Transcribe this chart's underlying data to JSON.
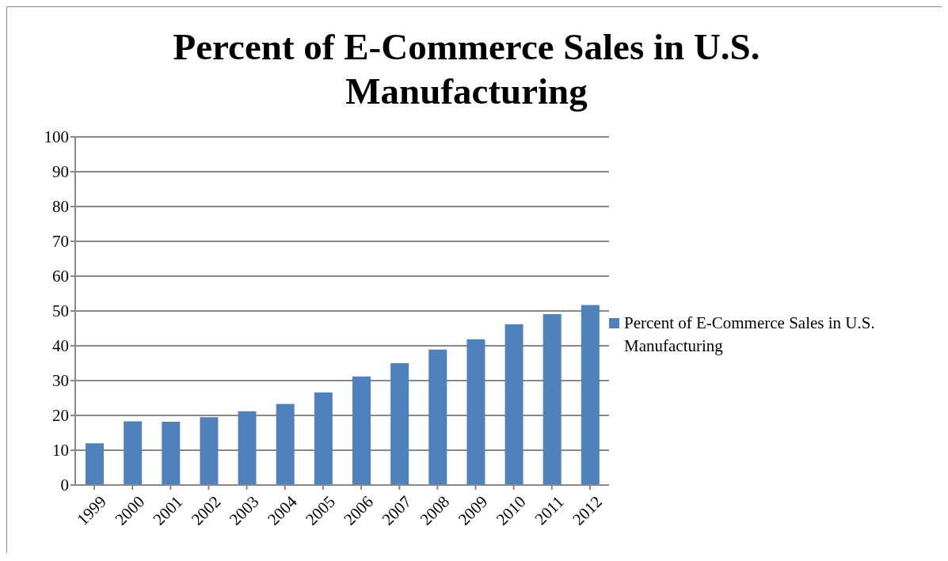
{
  "chart_data": {
    "type": "bar",
    "title": "Percent of E-Commerce Sales in U.S. Manufacturing",
    "categories": [
      "1999",
      "2000",
      "2001",
      "2002",
      "2003",
      "2004",
      "2005",
      "2006",
      "2007",
      "2008",
      "2009",
      "2010",
      "2011",
      "2012"
    ],
    "series": [
      {
        "name": "Percent of E-Commerce Sales in U.S. Manufacturing",
        "color": "#4f81bd",
        "values": [
          12,
          18.3,
          18.2,
          19.5,
          21.2,
          23.3,
          26.6,
          31.2,
          35.0,
          38.9,
          41.9,
          46.2,
          49.1,
          51.7
        ]
      }
    ],
    "ylim": [
      0,
      100
    ],
    "yticks": [
      0,
      10,
      20,
      30,
      40,
      50,
      60,
      70,
      80,
      90,
      100
    ],
    "grid": "y",
    "legend": "right"
  }
}
